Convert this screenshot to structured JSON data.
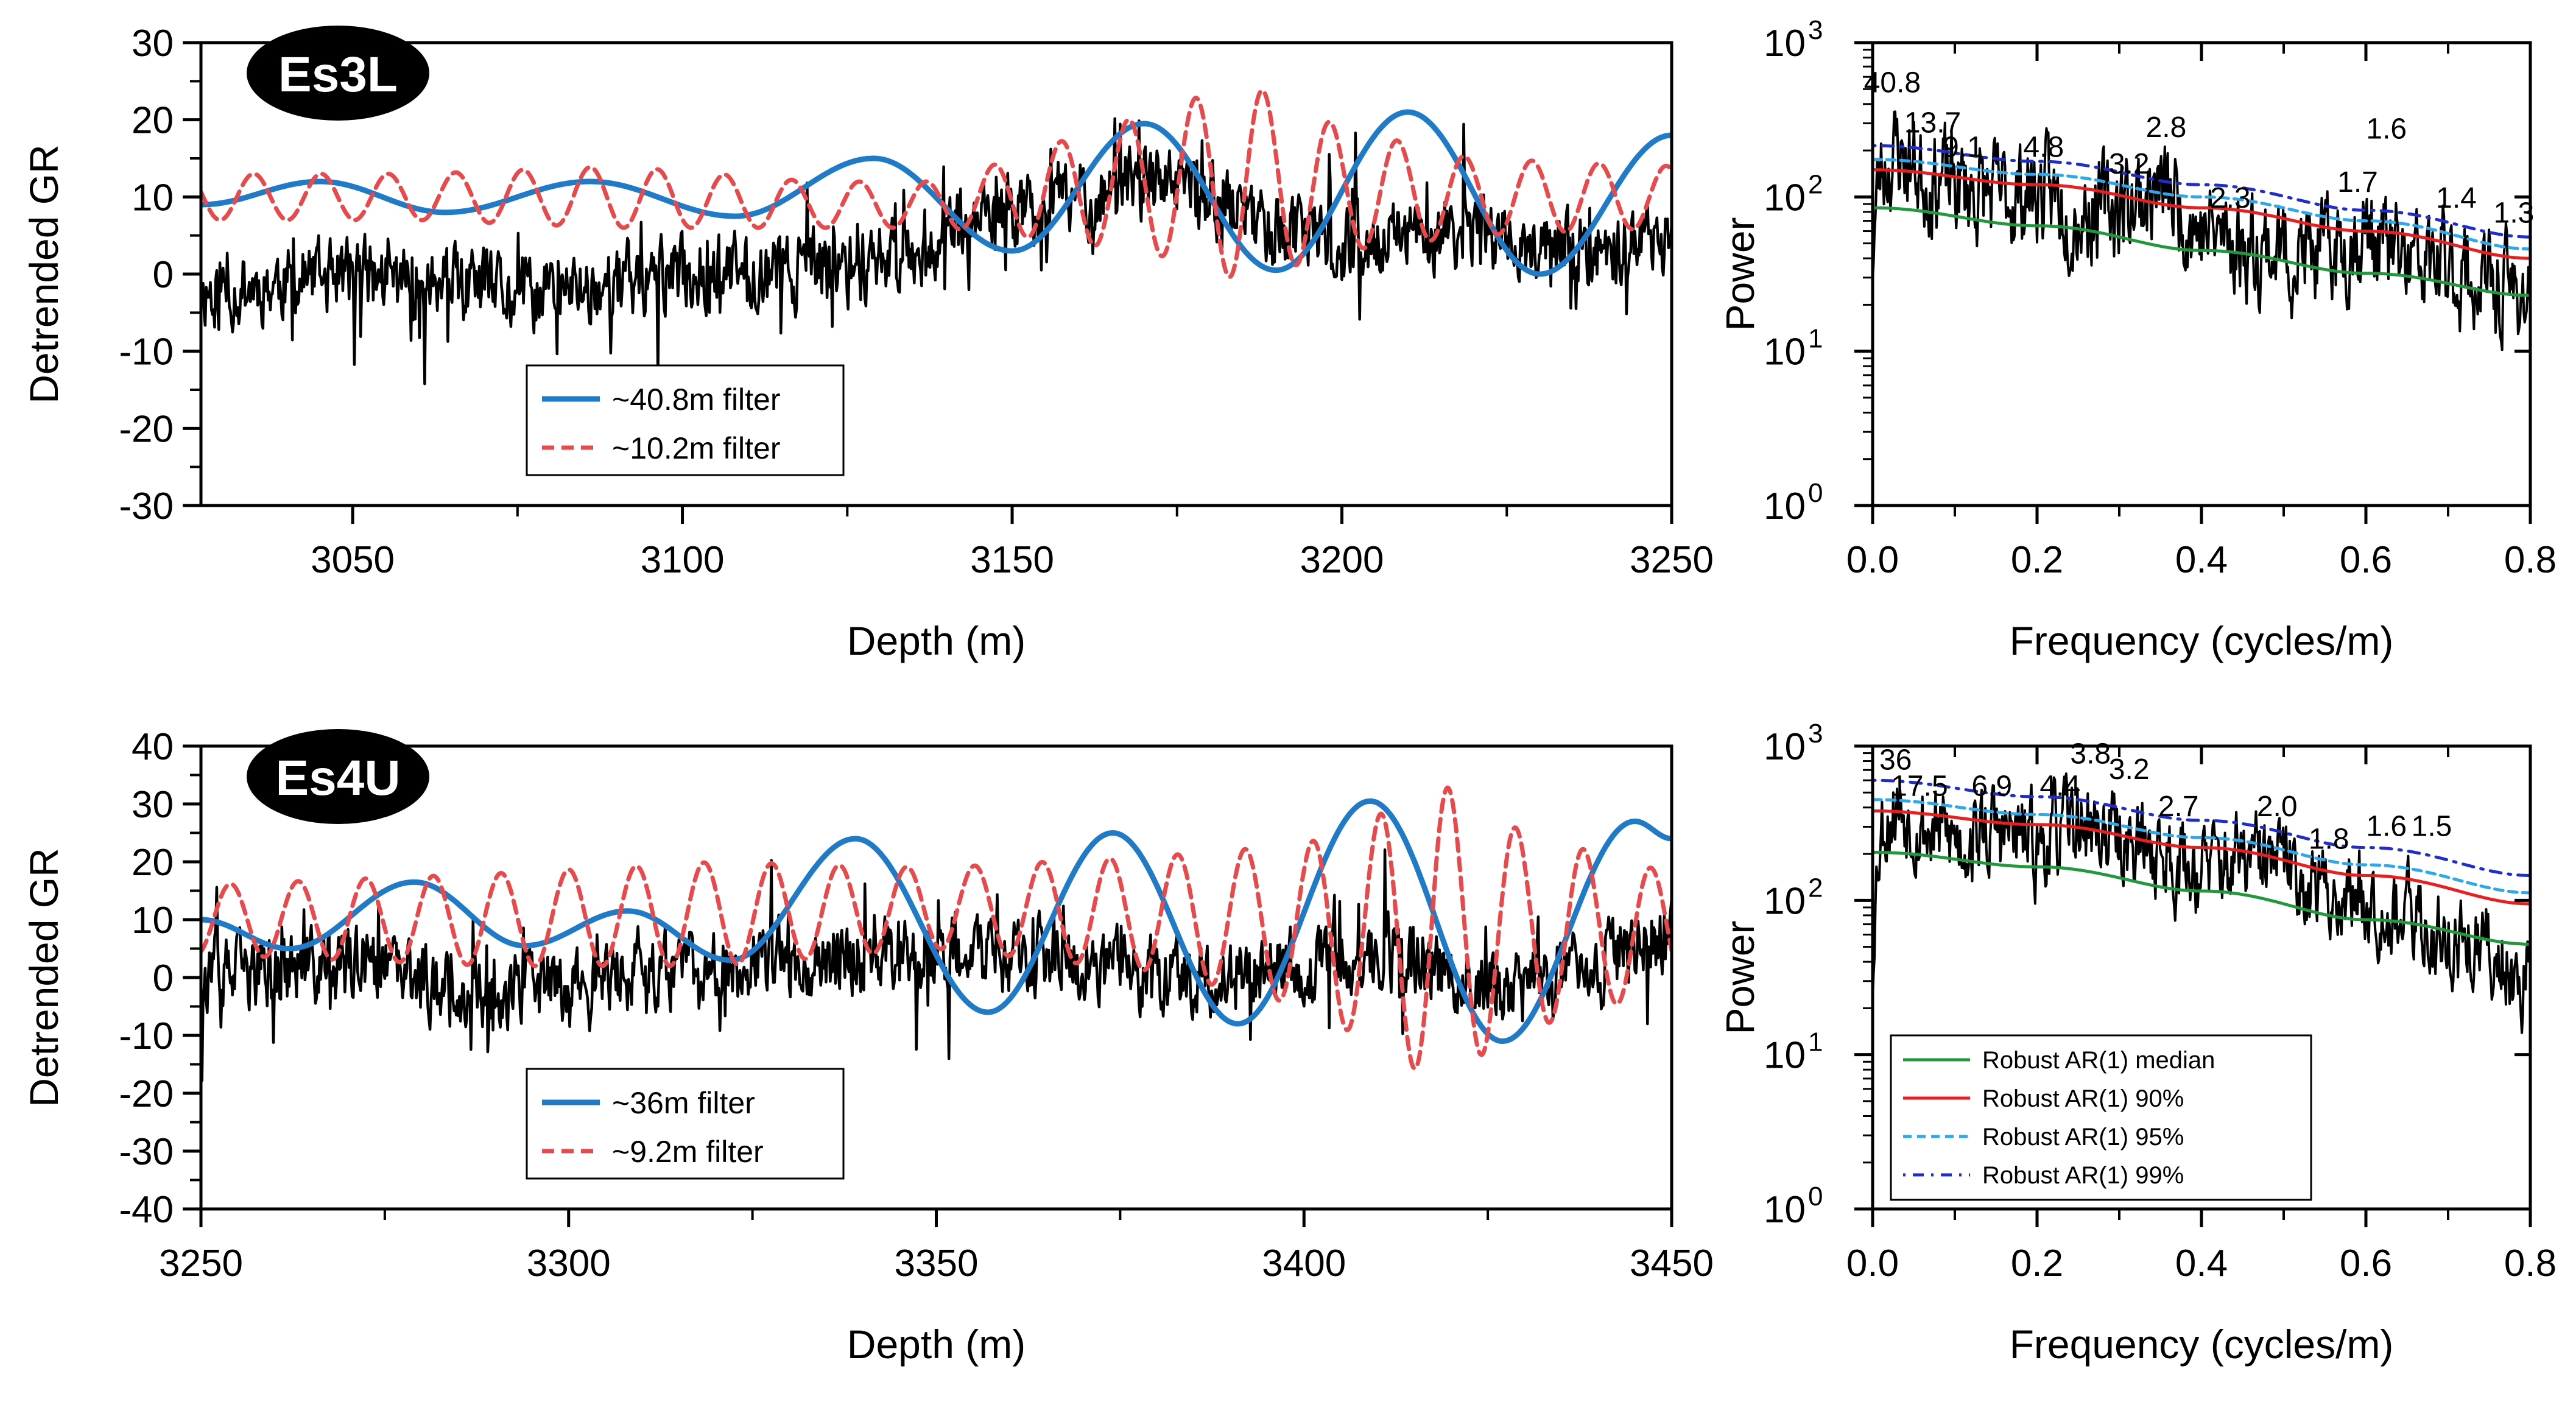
{
  "chart_data": [
    {
      "type": "line",
      "badge": "Es3L",
      "xlabel": "Depth (m)",
      "ylabel": "Detrended GR",
      "xlim": [
        3027,
        3250
      ],
      "ylim": [
        -30,
        30
      ],
      "xticks": [
        "3050",
        "3100",
        "3150",
        "3200",
        "3250"
      ],
      "yticks": [
        "-30",
        "-20",
        "-10",
        "0",
        "10",
        "20",
        "30"
      ],
      "legend": {
        "position": "bottom-left",
        "entries": [
          "~40.8m filter",
          "~10.2m filter"
        ]
      },
      "series": [
        {
          "kind": "signal",
          "color": "#000000",
          "amp": 7.5,
          "spike_amp": 11,
          "mean": 0,
          "seed": 11,
          "x": [
            3030,
            3050,
            3075,
            3100,
            3125,
            3140,
            3150,
            3170,
            3185,
            3200,
            3220,
            3235,
            3250
          ],
          "y": [
            -2,
            0,
            -3,
            0,
            1,
            5,
            8,
            12,
            8,
            3,
            6,
            2,
            5
          ]
        },
        {
          "name": "~40.8m filter",
          "kind": "sine",
          "color": "#1f7bc8",
          "x": [
            3027,
            3045,
            3064,
            3086,
            3108,
            3129,
            3150,
            3170,
            3190,
            3210,
            3230,
            3250
          ],
          "y": [
            9,
            12,
            8,
            12,
            7.5,
            15,
            3,
            19.5,
            0.5,
            21,
            0,
            18
          ]
        },
        {
          "name": "~10.2m filter",
          "kind": "filter",
          "color": "#e8494b",
          "period": 10.2,
          "phase": 3035,
          "env_x": [
            3027,
            3060,
            3090,
            3120,
            3140,
            3160,
            3175,
            3185,
            3200,
            3220,
            3250
          ],
          "env_mean": [
            10,
            10,
            10,
            9,
            9,
            11,
            12,
            12,
            11,
            10,
            10
          ],
          "env_amp": [
            3,
            3,
            4,
            3,
            3,
            7,
            10,
            13,
            8,
            5,
            4
          ]
        }
      ]
    },
    {
      "type": "line",
      "log_y": true,
      "xlabel": "Frequency (cycles/m)",
      "ylabel": "Power",
      "xlim": [
        0,
        0.8
      ],
      "ylim_exp": [
        0,
        3
      ],
      "xticks": [
        "0.0",
        "0.2",
        "0.4",
        "0.6",
        "0.8"
      ],
      "yticks": [
        "0",
        "1",
        "2",
        "3"
      ],
      "ytick_base": "10",
      "series": [
        {
          "kind": "spectrum",
          "color": "#000000",
          "seed": 23,
          "amp_log": 0.38,
          "x": [
            0,
            0.01,
            0.03,
            0.06,
            0.1,
            0.15,
            0.2,
            0.25,
            0.3,
            0.35,
            0.4,
            0.45,
            0.5,
            0.55,
            0.6,
            0.65,
            0.7,
            0.75,
            0.8
          ],
          "y": [
            40,
            150,
            200,
            140,
            120,
            100,
            110,
            80,
            90,
            110,
            60,
            50,
            45,
            40,
            60,
            35,
            35,
            25,
            25
          ]
        },
        {
          "kind": "smooth",
          "color": "#1e9a3a",
          "x": [
            0,
            0.2,
            0.4,
            0.6,
            0.8
          ],
          "y": [
            85,
            65,
            45,
            32,
            23
          ]
        },
        {
          "kind": "smooth",
          "color": "#ee1c1c",
          "x": [
            0,
            0.2,
            0.4,
            0.6,
            0.8
          ],
          "y": [
            150,
            120,
            85,
            60,
            40
          ]
        },
        {
          "kind": "dashed",
          "color": "#2aa9ee",
          "x": [
            0,
            0.2,
            0.4,
            0.6,
            0.8
          ],
          "y": [
            175,
            140,
            100,
            70,
            46
          ]
        },
        {
          "kind": "dotted",
          "color": "#1f2ccf",
          "x": [
            0,
            0.2,
            0.4,
            0.6,
            0.8
          ],
          "y": [
            215,
            170,
            120,
            82,
            55
          ]
        }
      ],
      "peaks": [
        {
          "label": "40.8",
          "f": 0.024,
          "p": 420
        },
        {
          "label": "13.7",
          "f": 0.073,
          "p": 230
        },
        {
          "label": "9.1",
          "f": 0.11,
          "p": 160
        },
        {
          "label": "4.8",
          "f": 0.208,
          "p": 160
        },
        {
          "label": "3.2",
          "f": 0.312,
          "p": 125
        },
        {
          "label": "2.8",
          "f": 0.357,
          "p": 215
        },
        {
          "label": "2.3",
          "f": 0.435,
          "p": 75
        },
        {
          "label": "1.7",
          "f": 0.59,
          "p": 95
        },
        {
          "label": "1.6",
          "f": 0.625,
          "p": 210
        },
        {
          "label": "1.4",
          "f": 0.71,
          "p": 75
        },
        {
          "label": "1.3",
          "f": 0.78,
          "p": 60
        }
      ]
    },
    {
      "type": "line",
      "badge": "Es4U",
      "xlabel": "Depth (m)",
      "ylabel": "Detrended GR",
      "xlim": [
        3250,
        3450
      ],
      "ylim": [
        -40,
        40
      ],
      "xticks": [
        "3250",
        "3300",
        "3350",
        "3400",
        "3450"
      ],
      "yticks": [
        "-40",
        "-30",
        "-20",
        "-10",
        "0",
        "10",
        "20",
        "30",
        "40"
      ],
      "legend": {
        "position": "bottom-left",
        "entries": [
          "~36m filter",
          "~9.2m filter"
        ]
      },
      "series": [
        {
          "kind": "signal",
          "color": "#000000",
          "amp": 10,
          "spike_amp": 14,
          "mean": 0,
          "seed": 37,
          "x": [
            3250,
            3270,
            3290,
            3310,
            3330,
            3350,
            3370,
            3390,
            3410,
            3430,
            3450
          ],
          "y": [
            0,
            2,
            -3,
            1,
            3,
            5,
            2,
            0,
            4,
            -2,
            8
          ]
        },
        {
          "name": "~36m filter",
          "kind": "sine",
          "color": "#1f7bc8",
          "x": [
            3250,
            3262,
            3279,
            3294,
            3308,
            3322,
            3339,
            3357,
            3374,
            3391,
            3409,
            3427,
            3445,
            3450
          ],
          "y": [
            10,
            5,
            16.5,
            5.5,
            11.5,
            3,
            24,
            -6,
            25,
            -8,
            30.5,
            -11,
            27,
            24
          ]
        },
        {
          "name": "~9.2m filter",
          "kind": "filter",
          "color": "#e8494b",
          "period": 9.2,
          "phase": 3254,
          "env_x": [
            3250,
            3290,
            3320,
            3350,
            3380,
            3400,
            3410,
            3418,
            3430,
            3450
          ],
          "env_mean": [
            10,
            10,
            11,
            12,
            11,
            9,
            8,
            8,
            8,
            8
          ],
          "env_amp": [
            6,
            8,
            9,
            7,
            10,
            14,
            20,
            26,
            17,
            10
          ]
        }
      ]
    },
    {
      "type": "line",
      "log_y": true,
      "xlabel": "Frequency (cycles/m)",
      "ylabel": "Power",
      "xlim": [
        0,
        0.8
      ],
      "ylim_exp": [
        0,
        3
      ],
      "xticks": [
        "0.0",
        "0.2",
        "0.4",
        "0.6",
        "0.8"
      ],
      "yticks": [
        "0",
        "1",
        "2",
        "3"
      ],
      "ytick_base": "10",
      "legend": {
        "position": "bottom-left",
        "entries": [
          "Robust  AR(1) median",
          "Robust  AR(1) 90%",
          "Robust  AR(1) 95%",
          "Robust  AR(1) 99%"
        ]
      },
      "series": [
        {
          "kind": "spectrum",
          "color": "#000000",
          "seed": 53,
          "amp_log": 0.33,
          "x": [
            0,
            0.01,
            0.03,
            0.06,
            0.1,
            0.15,
            0.2,
            0.25,
            0.3,
            0.35,
            0.4,
            0.45,
            0.5,
            0.55,
            0.6,
            0.65,
            0.7,
            0.75,
            0.8
          ],
          "y": [
            30,
            300,
            420,
            300,
            250,
            280,
            220,
            320,
            250,
            200,
            160,
            180,
            170,
            110,
            110,
            75,
            55,
            45,
            30
          ]
        },
        {
          "kind": "smooth",
          "color": "#1e9a3a",
          "x": [
            0,
            0.2,
            0.4,
            0.6,
            0.8
          ],
          "y": [
            205,
            165,
            115,
            75,
            52
          ]
        },
        {
          "kind": "smooth",
          "color": "#ee1c1c",
          "x": [
            0,
            0.2,
            0.4,
            0.6,
            0.8
          ],
          "y": [
            380,
            310,
            220,
            145,
            95
          ]
        },
        {
          "kind": "dashed",
          "color": "#2aa9ee",
          "x": [
            0,
            0.2,
            0.4,
            0.6,
            0.8
          ],
          "y": [
            450,
            360,
            255,
            170,
            112
          ]
        },
        {
          "kind": "dotted",
          "color": "#1f2ccf",
          "x": [
            0,
            0.2,
            0.4,
            0.6,
            0.8
          ],
          "y": [
            600,
            470,
            330,
            220,
            145
          ]
        }
      ],
      "peaks": [
        {
          "label": "36",
          "f": 0.028,
          "p": 620
        },
        {
          "label": "17.5",
          "f": 0.057,
          "p": 420
        },
        {
          "label": "6.9",
          "f": 0.145,
          "p": 420
        },
        {
          "label": "4.4",
          "f": 0.228,
          "p": 420
        },
        {
          "label": "3.8",
          "f": 0.265,
          "p": 680
        },
        {
          "label": "3.2",
          "f": 0.312,
          "p": 540
        },
        {
          "label": "2.7",
          "f": 0.372,
          "p": 310
        },
        {
          "label": "2.0",
          "f": 0.492,
          "p": 310
        },
        {
          "label": "1.8",
          "f": 0.555,
          "p": 190
        },
        {
          "label": "1.6",
          "f": 0.625,
          "p": 230
        },
        {
          "label": "1.5",
          "f": 0.68,
          "p": 230
        }
      ]
    }
  ]
}
